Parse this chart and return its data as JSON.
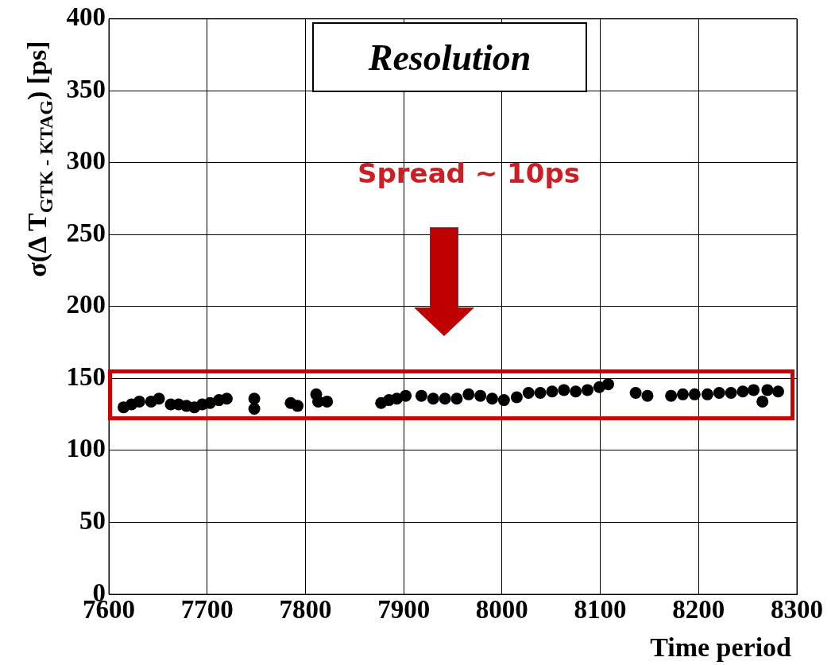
{
  "chart_data": {
    "type": "scatter",
    "title": "Resolution",
    "xlabel": "Time period",
    "ylabel": "σ(Δ T$_{GTK - KTAG}$) [ps]",
    "annotations": [
      "Spread ~ 10ps"
    ],
    "xlim": [
      7600,
      8300
    ],
    "xticks": [
      7600,
      7700,
      7800,
      7900,
      8000,
      8100,
      8200,
      8300
    ],
    "ylim": [
      0,
      400
    ],
    "yticks": [
      0,
      50,
      100,
      150,
      200,
      250,
      300,
      350,
      400
    ],
    "grid": true,
    "marker": "circle",
    "series": [
      {
        "color": "#000000",
        "x": [
          7615,
          7623,
          7631,
          7643,
          7651,
          7663,
          7671,
          7679,
          7687,
          7695,
          7703,
          7712,
          7720,
          7748,
          7748,
          7785,
          7792,
          7811,
          7813,
          7822,
          7877,
          7885,
          7893,
          7902,
          7918,
          7930,
          7942,
          7954,
          7966,
          7978,
          7990,
          8002,
          8015,
          8027,
          8039,
          8051,
          8063,
          8075,
          8087,
          8099,
          8108,
          8136,
          8148,
          8172,
          8184,
          8196,
          8209,
          8221,
          8233,
          8245,
          8256,
          8265,
          8270,
          8281
        ],
        "values": [
          130,
          132,
          134,
          134,
          136,
          132,
          132,
          131,
          130,
          132,
          133,
          135,
          136,
          136,
          129,
          133,
          131,
          139,
          134,
          134,
          133,
          135,
          136,
          138,
          138,
          136,
          136,
          136,
          139,
          138,
          136,
          135,
          137,
          140,
          140,
          141,
          142,
          141,
          142,
          144,
          146,
          140,
          138,
          138,
          139,
          139,
          139,
          140,
          140,
          141,
          142,
          134,
          142,
          141
        ]
      }
    ]
  }
}
